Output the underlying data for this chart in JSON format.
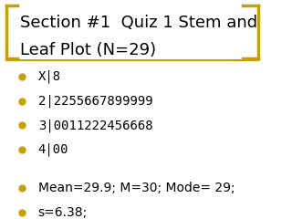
{
  "title_line1": "Section #1  Quiz 1 Stem and",
  "title_line2": "Leaf Plot (N=29)",
  "title_color": "#000000",
  "title_fontsize": 13,
  "bullet_color": "#C8A000",
  "bullet_items": [
    "X|8",
    "2|2255667899999",
    "3|0011222456668",
    "4|00"
  ],
  "stats_items": [
    "Mean=29.9; M=30; Mode= 29;",
    "s=6.38;"
  ],
  "text_color": "#000000",
  "text_fontsize": 10,
  "bg_color": "#FFFFFF",
  "bracket_color": "#C8A000",
  "separator_color": "#C8A000"
}
